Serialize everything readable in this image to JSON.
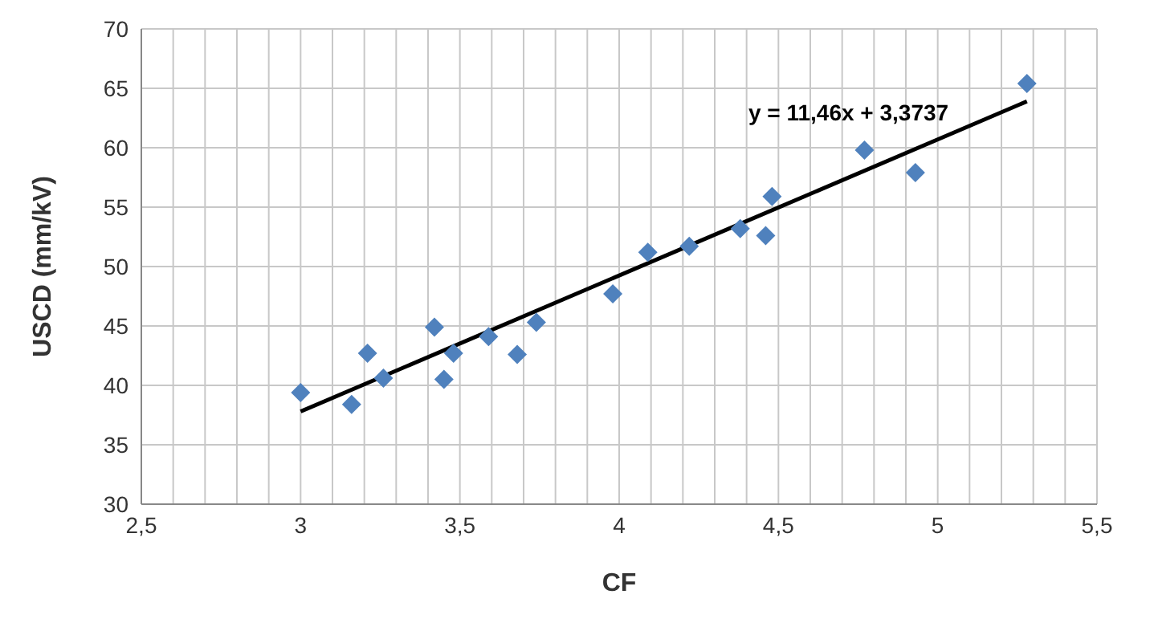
{
  "chart_data": {
    "type": "scatter",
    "xlabel": "CF",
    "ylabel": "USCD (mm/kV)",
    "annotations": [
      "y = 11,46x + 3,3737"
    ],
    "series": [
      {
        "type": "scatter",
        "color": "#4f81bd",
        "marker": "diamond",
        "x": [
          3.0,
          3.16,
          3.21,
          3.26,
          3.42,
          3.45,
          3.48,
          3.59,
          3.68,
          3.74,
          3.98,
          4.09,
          4.22,
          4.38,
          4.46,
          4.48,
          4.77,
          4.93,
          5.28
        ],
        "values": [
          39.4,
          38.4,
          42.7,
          40.6,
          44.9,
          40.5,
          42.7,
          44.1,
          42.6,
          45.3,
          47.7,
          51.2,
          51.7,
          53.2,
          52.6,
          55.9,
          59.8,
          57.9,
          65.4
        ]
      },
      {
        "type": "line",
        "color": "#000000",
        "marker": "none",
        "x": [
          3.0,
          5.28
        ],
        "values": [
          37.8,
          63.9
        ]
      }
    ],
    "xlim": [
      2.5,
      5.5
    ],
    "xticks": [
      {
        "value": 2.5,
        "label": "2,5"
      },
      {
        "value": 2.6,
        "label": null
      },
      {
        "value": 2.7,
        "label": null
      },
      {
        "value": 2.8,
        "label": null
      },
      {
        "value": 2.9,
        "label": null
      },
      {
        "value": 3,
        "label": "3"
      },
      {
        "value": 3.1,
        "label": null
      },
      {
        "value": 3.2,
        "label": null
      },
      {
        "value": 3.3,
        "label": null
      },
      {
        "value": 3.4,
        "label": null
      },
      {
        "value": 3.5,
        "label": "3,5"
      },
      {
        "value": 3.6,
        "label": null
      },
      {
        "value": 3.7,
        "label": null
      },
      {
        "value": 3.8,
        "label": null
      },
      {
        "value": 3.9,
        "label": null
      },
      {
        "value": 4,
        "label": "4"
      },
      {
        "value": 4.1,
        "label": null
      },
      {
        "value": 4.2,
        "label": null
      },
      {
        "value": 4.3,
        "label": null
      },
      {
        "value": 4.4,
        "label": null
      },
      {
        "value": 4.5,
        "label": "4,5"
      },
      {
        "value": 4.6,
        "label": null
      },
      {
        "value": 4.7,
        "label": null
      },
      {
        "value": 4.8,
        "label": null
      },
      {
        "value": 4.9,
        "label": null
      },
      {
        "value": 5,
        "label": "5"
      },
      {
        "value": 5.1,
        "label": null
      },
      {
        "value": 5.2,
        "label": null
      },
      {
        "value": 5.3,
        "label": null
      },
      {
        "value": 5.4,
        "label": null
      },
      {
        "value": 5.5,
        "label": "5,5"
      }
    ],
    "ylim": [
      30,
      70
    ],
    "yticks": [
      30,
      35,
      40,
      45,
      50,
      55,
      60,
      65,
      70
    ],
    "grid": true
  }
}
